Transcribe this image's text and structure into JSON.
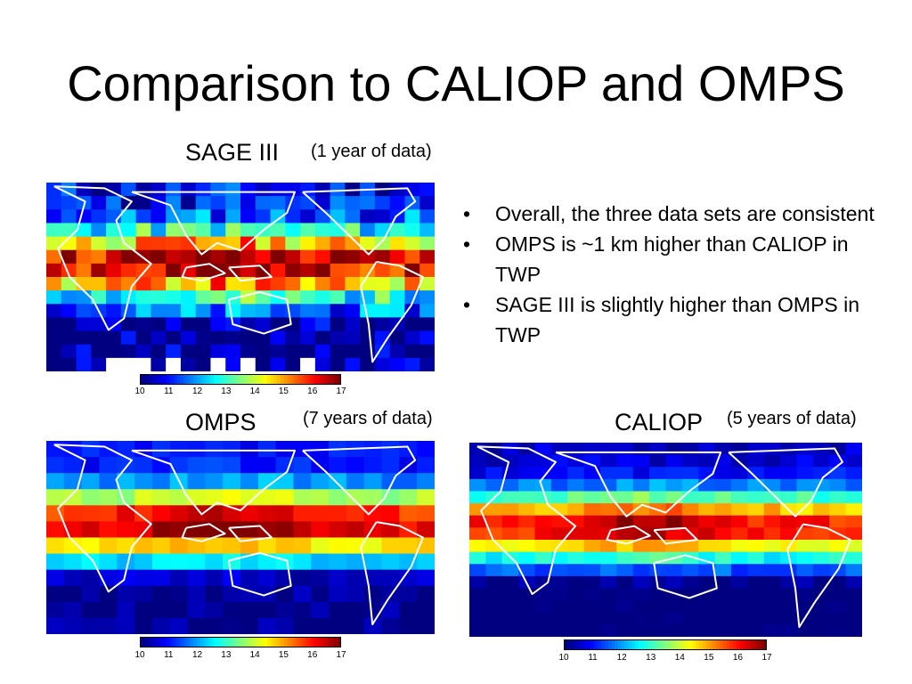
{
  "slide": {
    "title": "Comparison to CALIOP and OMPS",
    "bullets": [
      "Overall, the three data sets are consistent",
      "OMPS is ~1 km higher than CALIOP in TWP",
      "SAGE III is slightly higher than OMPS in TWP"
    ],
    "bullet_glyph": "•"
  },
  "panels": [
    {
      "id": "sage",
      "label": "SAGE III",
      "note": "(1 year of data)"
    },
    {
      "id": "omps",
      "label": "OMPS",
      "note": "(7 years of data)"
    },
    {
      "id": "caliop",
      "label": "CALIOP",
      "note": "(5 years of data)"
    }
  ],
  "colorbar": {
    "ticks": [
      "10",
      "11",
      "12",
      "13",
      "14",
      "15",
      "16",
      "17"
    ],
    "range": [
      10,
      17
    ],
    "colormap": "jet"
  },
  "colors": {
    "land_outline": "#ffffff",
    "missing": "#ffffff"
  }
}
